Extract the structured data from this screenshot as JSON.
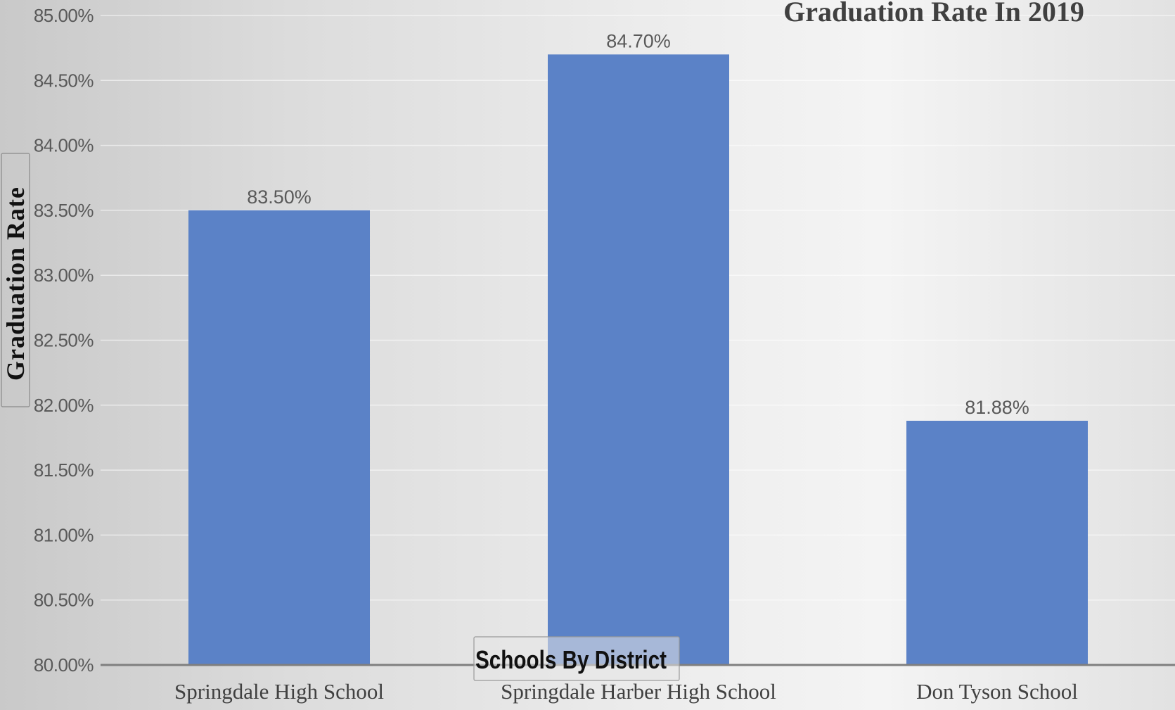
{
  "chart_data": {
    "type": "bar",
    "title": "Graduation Rate In 2019",
    "xlabel": "Schools By District",
    "ylabel": "Graduation Rate",
    "categories": [
      "Springdale High School",
      "Springdale Harber High School",
      "Don Tyson School"
    ],
    "values": [
      83.5,
      84.7,
      81.88
    ],
    "data_labels": [
      "83.50%",
      "84.70%",
      "81.88%"
    ],
    "ylim": [
      80.0,
      85.0
    ],
    "y_ticks": [
      80.0,
      80.5,
      81.0,
      81.5,
      82.0,
      82.5,
      83.0,
      83.5,
      84.0,
      84.5,
      85.0
    ],
    "y_tick_labels": [
      "80.00%",
      "80.50%",
      "81.00%",
      "81.50%",
      "82.00%",
      "82.50%",
      "83.00%",
      "83.50%",
      "84.00%",
      "84.50%",
      "85.00%"
    ],
    "bar_color": "#5b82c7",
    "grid": true,
    "legend": false
  }
}
